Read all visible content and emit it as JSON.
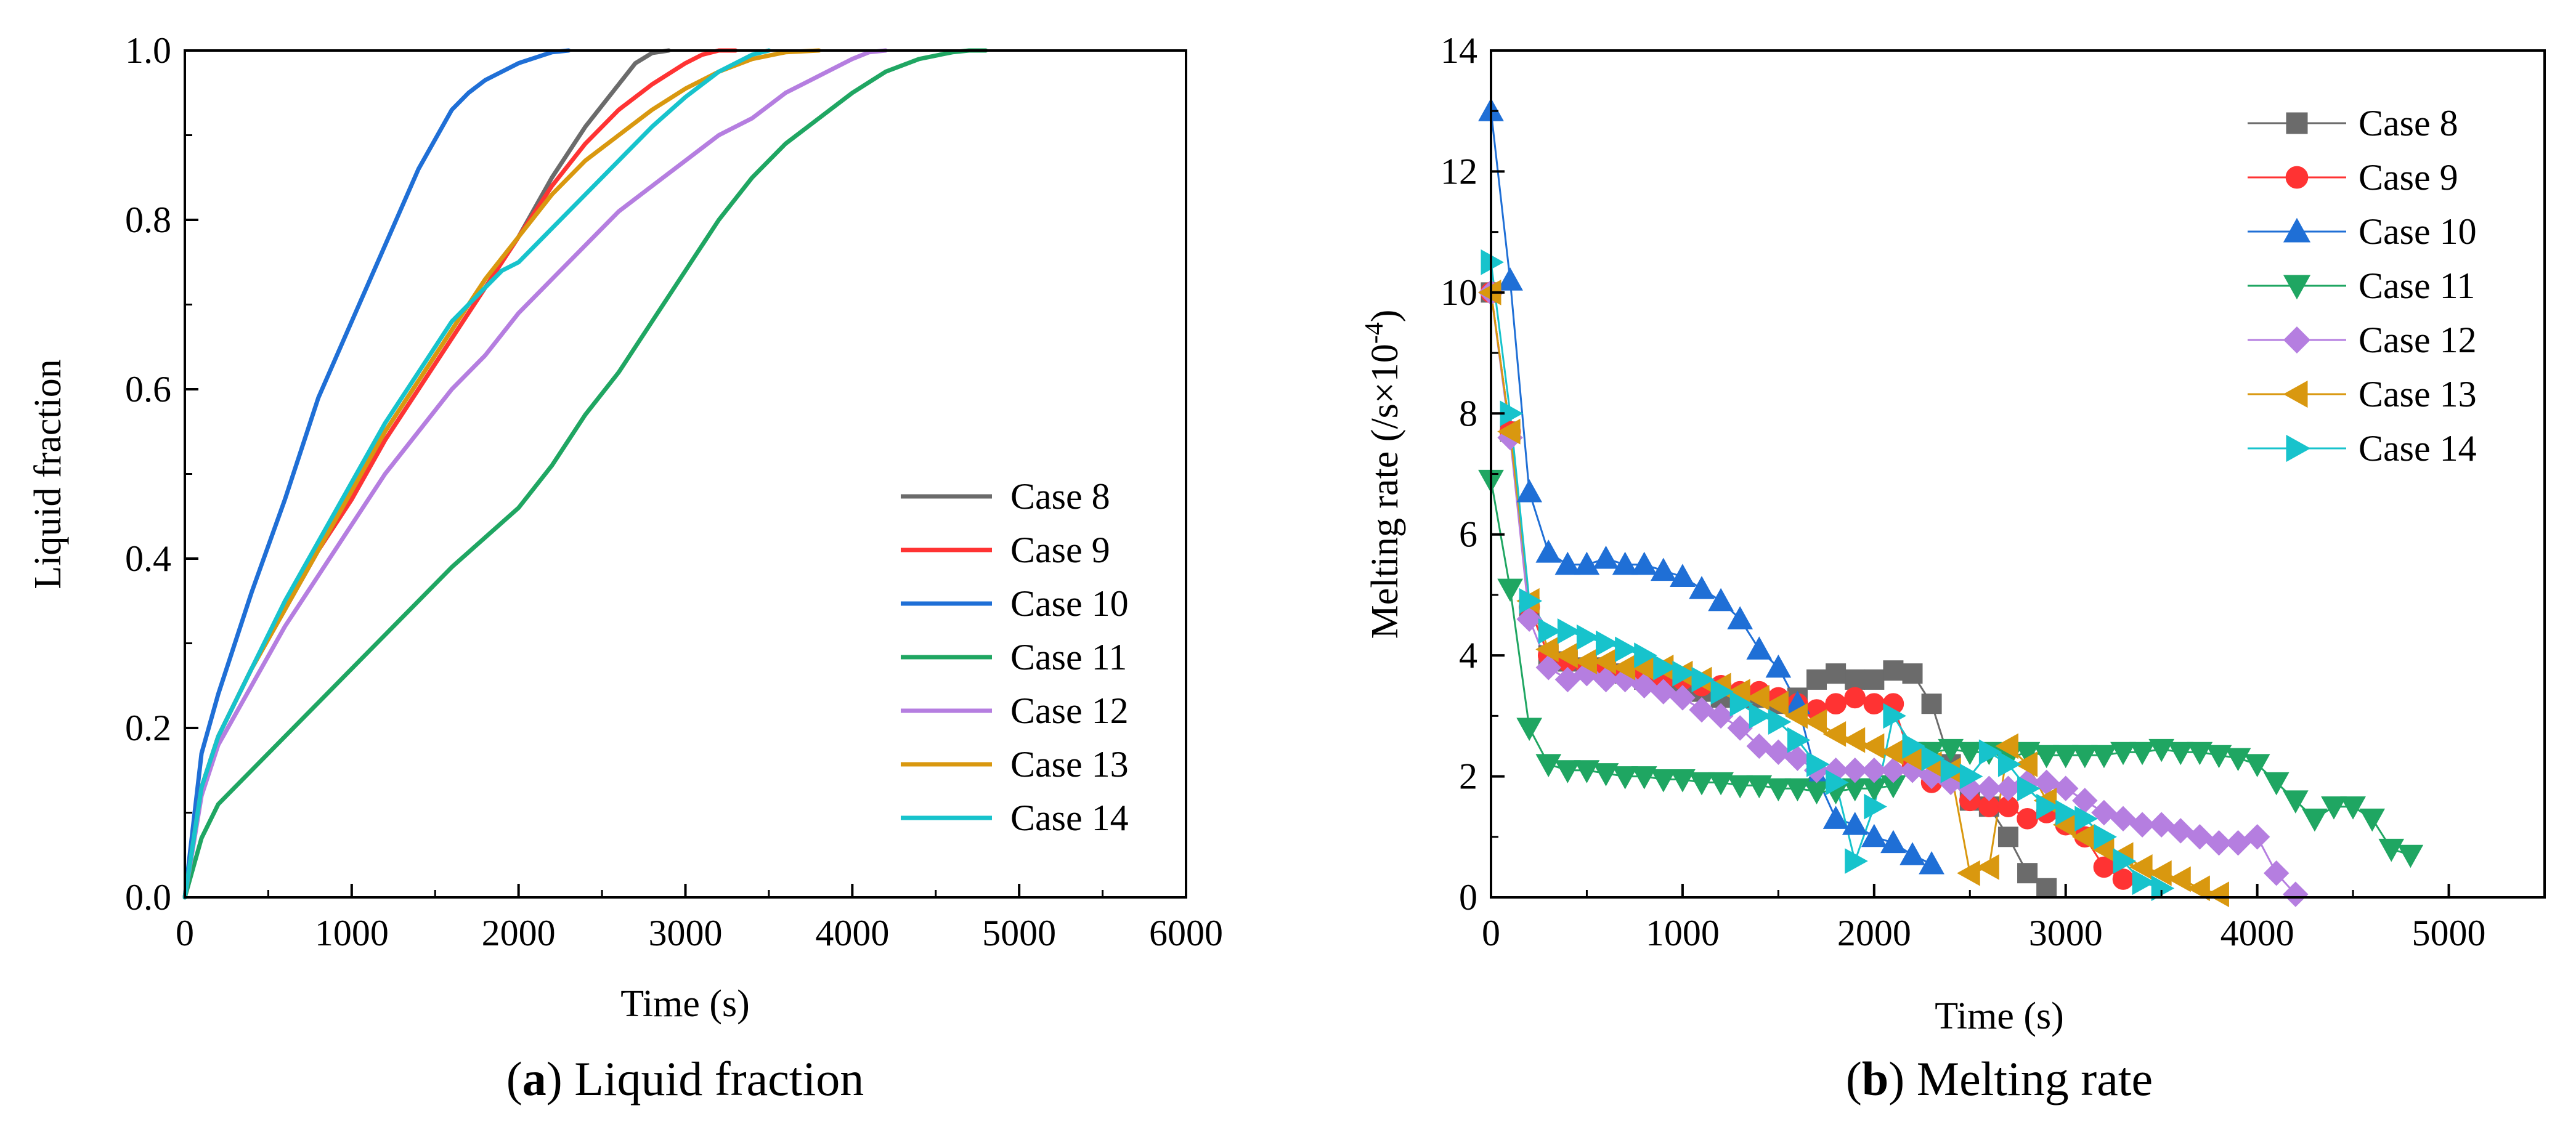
{
  "chart_data": [
    {
      "id": "a",
      "type": "line",
      "caption_letter": "a",
      "caption_text": "Liquid fraction",
      "xlabel": "Time (s)",
      "ylabel": "Liquid fraction",
      "xlim": [
        0,
        6000
      ],
      "ylim": [
        0,
        1.0
      ],
      "xticks": [
        0,
        1000,
        2000,
        3000,
        4000,
        5000,
        6000
      ],
      "yticks": [
        0.0,
        0.2,
        0.4,
        0.6,
        0.8,
        1.0
      ],
      "xtick_labels": [
        "0",
        "1000",
        "2000",
        "3000",
        "4000",
        "5000",
        "6000"
      ],
      "ytick_labels": [
        "0.0",
        "0.2",
        "0.4",
        "0.6",
        "0.8",
        "1.0"
      ],
      "legend_position": "bottom-right",
      "series": [
        {
          "name": "Case 8",
          "color": "#6b6b6b",
          "x": [
            0,
            100,
            200,
            400,
            600,
            800,
            1000,
            1200,
            1400,
            1600,
            1800,
            2000,
            2200,
            2400,
            2600,
            2700,
            2800,
            2900
          ],
          "y": [
            0,
            0.13,
            0.19,
            0.27,
            0.34,
            0.41,
            0.47,
            0.54,
            0.6,
            0.66,
            0.72,
            0.78,
            0.85,
            0.91,
            0.96,
            0.985,
            0.997,
            1.0
          ]
        },
        {
          "name": "Case 9",
          "color": "#ff3333",
          "x": [
            0,
            100,
            200,
            400,
            600,
            800,
            1000,
            1200,
            1400,
            1600,
            1800,
            2000,
            2200,
            2400,
            2600,
            2800,
            3000,
            3100,
            3200,
            3300
          ],
          "y": [
            0,
            0.13,
            0.19,
            0.27,
            0.34,
            0.41,
            0.47,
            0.54,
            0.6,
            0.66,
            0.72,
            0.78,
            0.84,
            0.89,
            0.93,
            0.96,
            0.985,
            0.995,
            1.0,
            1.0
          ]
        },
        {
          "name": "Case 10",
          "color": "#1f6fd6",
          "x": [
            0,
            100,
            200,
            400,
            600,
            800,
            1000,
            1200,
            1400,
            1600,
            1700,
            1800,
            2000,
            2200,
            2300
          ],
          "y": [
            0,
            0.17,
            0.24,
            0.36,
            0.47,
            0.59,
            0.68,
            0.77,
            0.86,
            0.93,
            0.95,
            0.965,
            0.985,
            0.998,
            1.0
          ]
        },
        {
          "name": "Case 11",
          "color": "#1fa662",
          "x": [
            0,
            100,
            200,
            400,
            600,
            800,
            1000,
            1200,
            1400,
            1600,
            1800,
            2000,
            2200,
            2400,
            2600,
            2800,
            3000,
            3200,
            3400,
            3600,
            3800,
            4000,
            4200,
            4400,
            4600,
            4700,
            4800
          ],
          "y": [
            0,
            0.07,
            0.11,
            0.15,
            0.19,
            0.23,
            0.27,
            0.31,
            0.35,
            0.39,
            0.425,
            0.46,
            0.51,
            0.57,
            0.62,
            0.68,
            0.74,
            0.8,
            0.85,
            0.89,
            0.92,
            0.95,
            0.975,
            0.99,
            0.998,
            1.0,
            1.0
          ]
        },
        {
          "name": "Case 12",
          "color": "#b57ee0",
          "x": [
            0,
            100,
            200,
            400,
            600,
            800,
            1000,
            1200,
            1400,
            1600,
            1800,
            2000,
            2200,
            2400,
            2600,
            2800,
            3000,
            3200,
            3400,
            3600,
            3800,
            4000,
            4100,
            4200
          ],
          "y": [
            0,
            0.12,
            0.18,
            0.25,
            0.32,
            0.38,
            0.44,
            0.5,
            0.55,
            0.6,
            0.64,
            0.69,
            0.73,
            0.77,
            0.81,
            0.84,
            0.87,
            0.9,
            0.92,
            0.95,
            0.97,
            0.99,
            0.998,
            1.0
          ]
        },
        {
          "name": "Case 13",
          "color": "#d9980f",
          "x": [
            0,
            100,
            200,
            400,
            600,
            800,
            1000,
            1200,
            1400,
            1600,
            1800,
            2000,
            2200,
            2400,
            2600,
            2800,
            3000,
            3200,
            3400,
            3600,
            3800
          ],
          "y": [
            0,
            0.13,
            0.19,
            0.27,
            0.34,
            0.41,
            0.48,
            0.55,
            0.61,
            0.67,
            0.73,
            0.78,
            0.83,
            0.87,
            0.9,
            0.93,
            0.955,
            0.975,
            0.99,
            0.998,
            1.0
          ]
        },
        {
          "name": "Case 14",
          "color": "#17c3cc",
          "x": [
            0,
            100,
            200,
            400,
            600,
            800,
            1000,
            1200,
            1400,
            1600,
            1800,
            1900,
            2000,
            2200,
            2400,
            2600,
            2800,
            3000,
            3200,
            3400,
            3500
          ],
          "y": [
            0,
            0.13,
            0.19,
            0.27,
            0.35,
            0.42,
            0.49,
            0.56,
            0.62,
            0.68,
            0.72,
            0.74,
            0.75,
            0.79,
            0.83,
            0.87,
            0.91,
            0.945,
            0.975,
            0.995,
            1.0
          ]
        }
      ]
    },
    {
      "id": "b",
      "type": "line",
      "caption_letter": "b",
      "caption_text": "Melting rate",
      "xlabel": "Time (s)",
      "ylabel_main": "Melting rate  (/s×10",
      "ylabel_sup": "-4",
      "ylabel_end": ")",
      "xlim": [
        0,
        5500
      ],
      "ylim": [
        0,
        14
      ],
      "xticks": [
        0,
        1000,
        2000,
        3000,
        4000,
        5000
      ],
      "yticks": [
        0,
        2,
        4,
        6,
        8,
        10,
        12,
        14
      ],
      "xtick_labels": [
        "0",
        "1000",
        "2000",
        "3000",
        "4000",
        "5000"
      ],
      "ytick_labels": [
        "0",
        "2",
        "4",
        "6",
        "8",
        "10",
        "12",
        "14"
      ],
      "legend_position": "top-right",
      "series": [
        {
          "name": "Case 8",
          "color": "#6b6b6b",
          "marker": "square",
          "x": [
            0,
            100,
            200,
            300,
            400,
            500,
            600,
            700,
            800,
            900,
            1000,
            1100,
            1200,
            1300,
            1400,
            1500,
            1600,
            1700,
            1800,
            1900,
            2000,
            2100,
            2200,
            2300,
            2400,
            2500,
            2600,
            2700,
            2800,
            2900
          ],
          "y": [
            10.0,
            7.7,
            4.8,
            4.0,
            3.9,
            3.8,
            3.8,
            3.7,
            3.6,
            3.6,
            3.5,
            3.4,
            3.3,
            3.3,
            3.3,
            3.2,
            3.3,
            3.6,
            3.7,
            3.6,
            3.6,
            3.75,
            3.7,
            3.2,
            2.2,
            1.6,
            1.5,
            1.0,
            0.4,
            0.15
          ]
        },
        {
          "name": "Case 9",
          "color": "#ff3333",
          "marker": "circle",
          "x": [
            0,
            100,
            200,
            300,
            400,
            500,
            600,
            700,
            800,
            900,
            1000,
            1100,
            1200,
            1300,
            1400,
            1500,
            1600,
            1700,
            1800,
            1900,
            2000,
            2100,
            2200,
            2300,
            2400,
            2500,
            2600,
            2700,
            2800,
            2900,
            3000,
            3100,
            3200,
            3300
          ],
          "y": [
            10.0,
            7.7,
            4.8,
            4.0,
            3.9,
            3.8,
            3.8,
            3.7,
            3.7,
            3.6,
            3.6,
            3.5,
            3.5,
            3.4,
            3.4,
            3.3,
            3.2,
            3.1,
            3.2,
            3.3,
            3.2,
            3.2,
            2.2,
            1.9,
            2.0,
            1.6,
            1.5,
            1.5,
            1.3,
            1.4,
            1.2,
            1.0,
            0.5,
            0.3
          ]
        },
        {
          "name": "Case 10",
          "color": "#1f6fd6",
          "marker": "triangle-up",
          "x": [
            0,
            100,
            200,
            300,
            400,
            500,
            600,
            700,
            800,
            900,
            1000,
            1100,
            1200,
            1300,
            1400,
            1500,
            1600,
            1700,
            1800,
            1900,
            2000,
            2100,
            2200,
            2300
          ],
          "y": [
            13.0,
            10.2,
            6.7,
            5.7,
            5.5,
            5.5,
            5.6,
            5.5,
            5.5,
            5.4,
            5.3,
            5.1,
            4.9,
            4.6,
            4.1,
            3.8,
            3.2,
            2.0,
            1.3,
            1.2,
            1.0,
            0.9,
            0.7,
            0.55
          ]
        },
        {
          "name": "Case 11",
          "color": "#1fa662",
          "marker": "triangle-down",
          "x": [
            0,
            100,
            200,
            300,
            400,
            500,
            600,
            700,
            800,
            900,
            1000,
            1100,
            1200,
            1300,
            1400,
            1500,
            1600,
            1700,
            1800,
            1900,
            2000,
            2100,
            2200,
            2300,
            2400,
            2500,
            2600,
            2700,
            2800,
            2900,
            3000,
            3100,
            3200,
            3300,
            3400,
            3500,
            3600,
            3700,
            3800,
            3900,
            4000,
            4100,
            4200,
            4300,
            4400,
            4500,
            4600,
            4700,
            4800
          ],
          "y": [
            6.9,
            5.1,
            2.8,
            2.2,
            2.1,
            2.1,
            2.05,
            2.0,
            2.0,
            1.95,
            1.95,
            1.9,
            1.9,
            1.85,
            1.85,
            1.8,
            1.8,
            1.75,
            1.75,
            1.8,
            1.8,
            1.85,
            2.4,
            2.4,
            2.45,
            2.4,
            2.4,
            2.3,
            2.4,
            2.35,
            2.35,
            2.35,
            2.35,
            2.4,
            2.4,
            2.45,
            2.4,
            2.4,
            2.35,
            2.3,
            2.2,
            1.9,
            1.6,
            1.3,
            1.5,
            1.5,
            1.3,
            0.8,
            0.7
          ]
        },
        {
          "name": "Case 12",
          "color": "#b57ee0",
          "marker": "diamond",
          "x": [
            0,
            100,
            200,
            300,
            400,
            500,
            600,
            700,
            800,
            900,
            1000,
            1100,
            1200,
            1300,
            1400,
            1500,
            1600,
            1700,
            1800,
            1900,
            2000,
            2100,
            2200,
            2300,
            2400,
            2500,
            2600,
            2700,
            2800,
            2900,
            3000,
            3100,
            3200,
            3300,
            3400,
            3500,
            3600,
            3700,
            3800,
            3900,
            4000,
            4100,
            4200
          ],
          "y": [
            10.0,
            7.6,
            4.6,
            3.8,
            3.6,
            3.7,
            3.6,
            3.6,
            3.5,
            3.4,
            3.3,
            3.1,
            3.0,
            2.8,
            2.5,
            2.4,
            2.3,
            2.1,
            2.1,
            2.1,
            2.1,
            2.1,
            2.1,
            2.0,
            1.9,
            1.8,
            1.8,
            1.8,
            1.9,
            1.9,
            1.8,
            1.6,
            1.4,
            1.3,
            1.2,
            1.2,
            1.1,
            1.0,
            0.9,
            0.9,
            1.0,
            0.4,
            0.05
          ]
        },
        {
          "name": "Case 13",
          "color": "#d9980f",
          "marker": "triangle-left",
          "x": [
            0,
            100,
            200,
            300,
            400,
            500,
            600,
            700,
            800,
            900,
            1000,
            1100,
            1200,
            1300,
            1400,
            1500,
            1600,
            1700,
            1800,
            1900,
            2000,
            2100,
            2200,
            2300,
            2400,
            2500,
            2600,
            2700,
            2800,
            2900,
            3000,
            3100,
            3200,
            3300,
            3400,
            3500,
            3600,
            3700,
            3800
          ],
          "y": [
            10.0,
            7.7,
            4.9,
            4.1,
            4.0,
            3.9,
            3.9,
            3.8,
            3.8,
            3.8,
            3.7,
            3.6,
            3.5,
            3.4,
            3.3,
            3.2,
            3.0,
            2.9,
            2.7,
            2.6,
            2.5,
            2.4,
            2.3,
            2.2,
            2.1,
            0.4,
            0.5,
            2.5,
            2.2,
            1.6,
            1.2,
            1.0,
            0.8,
            0.7,
            0.5,
            0.4,
            0.3,
            0.15,
            0.05
          ]
        },
        {
          "name": "Case 14",
          "color": "#17c3cc",
          "marker": "triangle-right",
          "x": [
            0,
            100,
            200,
            300,
            400,
            500,
            600,
            700,
            800,
            900,
            1000,
            1100,
            1200,
            1300,
            1400,
            1500,
            1600,
            1700,
            1800,
            1900,
            2000,
            2100,
            2200,
            2300,
            2400,
            2500,
            2600,
            2700,
            2800,
            2900,
            3000,
            3100,
            3200,
            3300,
            3400,
            3500
          ],
          "y": [
            10.5,
            8.0,
            4.9,
            4.4,
            4.4,
            4.3,
            4.2,
            4.1,
            4.0,
            3.8,
            3.7,
            3.6,
            3.4,
            3.2,
            3.0,
            2.9,
            2.6,
            2.2,
            1.9,
            0.6,
            1.5,
            3.0,
            2.5,
            2.3,
            2.1,
            2.0,
            2.4,
            2.2,
            1.8,
            1.5,
            1.4,
            1.3,
            1.0,
            0.6,
            0.25,
            0.15
          ]
        }
      ]
    }
  ]
}
